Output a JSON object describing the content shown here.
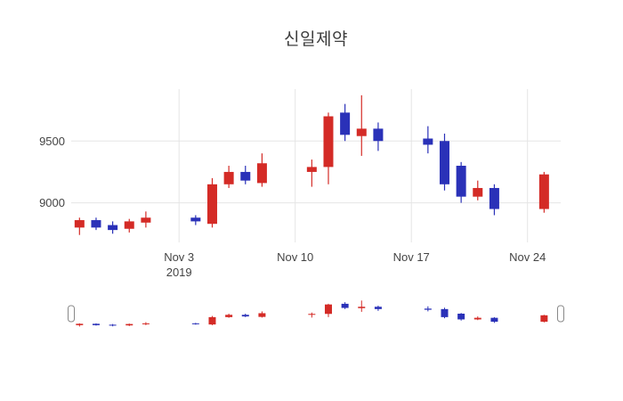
{
  "chart_data": {
    "type": "candlestick",
    "title": "신일제약",
    "legend": "none",
    "grid": true,
    "rangeslider": true,
    "increasing_color": "#d42b26",
    "decreasing_color": "#2a31b8",
    "grid_color": "#e5e5e5",
    "tick_color": "#444444",
    "background_color": "#ffffff",
    "ylim": [
      8680,
      9920
    ],
    "xlim": [
      "2019-10-27T12:00:00",
      "2019-11-26T00:00:00"
    ],
    "y_ticks": [
      {
        "value": 9500,
        "label": "9500"
      },
      {
        "value": 9000,
        "label": "9000"
      }
    ],
    "x_ticks": [
      {
        "date": "2019-11-03",
        "lines": [
          "Nov 3",
          "2019"
        ]
      },
      {
        "date": "2019-11-10",
        "lines": [
          "Nov 10"
        ]
      },
      {
        "date": "2019-11-17",
        "lines": [
          "Nov 17"
        ]
      },
      {
        "date": "2019-11-24",
        "lines": [
          "Nov 24"
        ]
      }
    ],
    "ohlc": [
      {
        "date": "2019-10-28",
        "open": 8800,
        "high": 8880,
        "low": 8740,
        "close": 8860
      },
      {
        "date": "2019-10-29",
        "open": 8860,
        "high": 8880,
        "low": 8780,
        "close": 8800
      },
      {
        "date": "2019-10-30",
        "open": 8820,
        "high": 8850,
        "low": 8750,
        "close": 8780
      },
      {
        "date": "2019-10-31",
        "open": 8790,
        "high": 8870,
        "low": 8760,
        "close": 8850
      },
      {
        "date": "2019-11-01",
        "open": 8840,
        "high": 8930,
        "low": 8800,
        "close": 8880
      },
      {
        "date": "2019-11-04",
        "open": 8880,
        "high": 8900,
        "low": 8820,
        "close": 8850
      },
      {
        "date": "2019-11-05",
        "open": 8830,
        "high": 9200,
        "low": 8800,
        "close": 9150
      },
      {
        "date": "2019-11-06",
        "open": 9150,
        "high": 9300,
        "low": 9120,
        "close": 9250
      },
      {
        "date": "2019-11-07",
        "open": 9250,
        "high": 9300,
        "low": 9150,
        "close": 9180
      },
      {
        "date": "2019-11-08",
        "open": 9160,
        "high": 9400,
        "low": 9130,
        "close": 9320
      },
      {
        "date": "2019-11-11",
        "open": 9250,
        "high": 9350,
        "low": 9130,
        "close": 9290
      },
      {
        "date": "2019-11-12",
        "open": 9290,
        "high": 9730,
        "low": 9150,
        "close": 9700
      },
      {
        "date": "2019-11-13",
        "open": 9730,
        "high": 9800,
        "low": 9500,
        "close": 9550
      },
      {
        "date": "2019-11-14",
        "open": 9540,
        "high": 9870,
        "low": 9380,
        "close": 9600
      },
      {
        "date": "2019-11-15",
        "open": 9600,
        "high": 9650,
        "low": 9420,
        "close": 9500
      },
      {
        "date": "2019-11-18",
        "open": 9520,
        "high": 9620,
        "low": 9400,
        "close": 9470
      },
      {
        "date": "2019-11-19",
        "open": 9500,
        "high": 9560,
        "low": 9100,
        "close": 9150
      },
      {
        "date": "2019-11-20",
        "open": 9300,
        "high": 9330,
        "low": 9000,
        "close": 9050
      },
      {
        "date": "2019-11-21",
        "open": 9050,
        "high": 9180,
        "low": 9020,
        "close": 9120
      },
      {
        "date": "2019-11-22",
        "open": 9120,
        "high": 9150,
        "low": 8900,
        "close": 8950
      },
      {
        "date": "2019-11-25",
        "open": 8950,
        "high": 9250,
        "low": 8920,
        "close": 9230
      }
    ]
  }
}
